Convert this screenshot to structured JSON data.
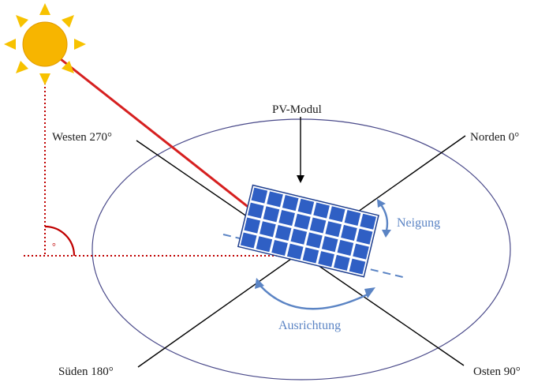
{
  "labels": {
    "pv_module": "PV-Modul",
    "north": "Norden 0°",
    "west": "Westen 270°",
    "south": "Süden 180°",
    "east": "Osten 90°",
    "tilt": "Neigung",
    "azimuth": "Ausrichtung",
    "elevation_symbol": "°"
  },
  "colors": {
    "sun_fill": "#f7b500",
    "sun_ray": "#f7c200",
    "sun_ray_red": "#d62020",
    "elevation_line": "#c00000",
    "panel_cell": "#2f5fc4",
    "panel_frame": "#1f3f8f",
    "accent_blue": "#5b84c4",
    "ellipse_stroke": "#4a4a8a",
    "axis_line": "#000000"
  },
  "icons": {
    "sun": "sun-icon",
    "pv_panel": "solar-panel-icon"
  }
}
